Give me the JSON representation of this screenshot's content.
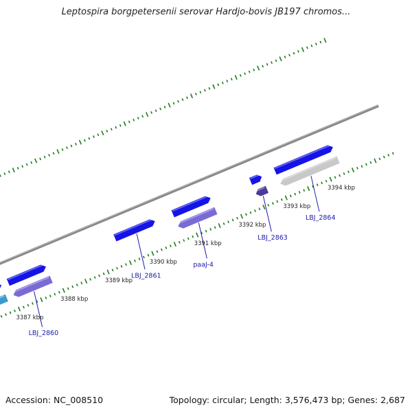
{
  "title": "Leptospira borgpetersenii serovar Hardjo-bovis JB197 chromos...",
  "footer": {
    "accession": "Accession: NC_008510",
    "summary": "Topology: circular; Length: 3,576,473 bp; Genes: 2,687"
  },
  "colors": {
    "backbone": "#888888",
    "tick": "#1f7a1f",
    "gene_forward": "#1414e6",
    "gene_reverse": "#7a6ad6",
    "gene_dark": "#4a3a9a",
    "gene_gray": "#c8c8c8",
    "gene_cyan": "#3a9ad0",
    "label": "#1a1aa8"
  },
  "scale_labels": [
    {
      "text": "3387 kbp",
      "pos": 3387.0
    },
    {
      "text": "3388 kbp",
      "pos": 3388.0
    },
    {
      "text": "3389 kbp",
      "pos": 3389.0
    },
    {
      "text": "3390 kbp",
      "pos": 3390.0
    },
    {
      "text": "3391 kbp",
      "pos": 3391.0
    },
    {
      "text": "3392 kbp",
      "pos": 3392.0
    },
    {
      "text": "3393 kbp",
      "pos": 3393.0
    },
    {
      "text": "3394 kbp",
      "pos": 3394.0
    }
  ],
  "genes": [
    {
      "label": "",
      "start": 3386.55,
      "end": 3386.85,
      "strand": "forward",
      "color": "gene_forward"
    },
    {
      "label": "",
      "start": 3386.55,
      "end": 3386.85,
      "strand": "reverse",
      "color": "gene_cyan"
    },
    {
      "label": "",
      "start": 3387.0,
      "end": 3387.85,
      "strand": "forward",
      "color": "gene_forward"
    },
    {
      "label": "LBJ_2860",
      "start": 3387.0,
      "end": 3387.85,
      "strand": "reverse",
      "color": "gene_reverse"
    },
    {
      "label": "LBJ_2861",
      "start": 3389.4,
      "end": 3390.3,
      "strand": "forward",
      "color": "gene_forward"
    },
    {
      "label": "",
      "start": 3390.7,
      "end": 3391.55,
      "strand": "forward",
      "color": "gene_forward"
    },
    {
      "label": "paaJ-4",
      "start": 3390.7,
      "end": 3391.55,
      "strand": "reverse",
      "color": "gene_reverse"
    },
    {
      "label": "",
      "start": 3392.45,
      "end": 3392.7,
      "strand": "forward",
      "color": "gene_forward"
    },
    {
      "label": "LBJ_2863",
      "start": 3392.45,
      "end": 3392.7,
      "strand": "reverse",
      "color": "gene_dark"
    },
    {
      "label": "",
      "start": 3393.0,
      "end": 3394.3,
      "strand": "forward",
      "color": "gene_forward"
    },
    {
      "label": "LBJ_2864",
      "start": 3393.0,
      "end": 3394.3,
      "strand": "reverse",
      "color": "gene_gray"
    }
  ]
}
